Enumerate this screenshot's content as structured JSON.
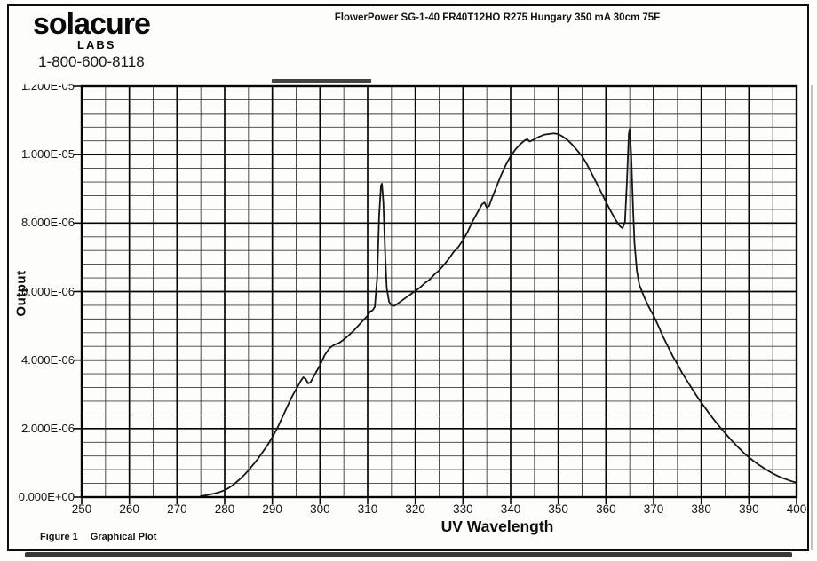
{
  "page": {
    "logo": {
      "brand": "solacure",
      "sub": "LABS",
      "phone": "1-800-600-8118"
    },
    "figure_caption": {
      "label": "Figure 1",
      "text": "Graphical Plot"
    },
    "colors": {
      "ink": "#141414",
      "paper": "#fdfdfc"
    }
  },
  "chart_data": {
    "type": "line",
    "title": "FlowerPower SG-1-40 FR40T12HO R275 Hungary 350 mA 30cm 75F",
    "xlabel": "UV Wavelength",
    "ylabel": "Output",
    "xlim": [
      250,
      400
    ],
    "ylim": [
      0,
      1.2e-05
    ],
    "x_ticks": [
      250,
      260,
      270,
      280,
      290,
      300,
      310,
      320,
      330,
      340,
      350,
      360,
      370,
      380,
      390,
      400
    ],
    "x_minor_step": 5,
    "y_tick_labels": [
      "0.000E+00",
      "2.000E-06",
      "4.000E-06",
      "6.000E-06",
      "8.000E-06",
      "1.000E-05",
      "1.200E-05"
    ],
    "y_tick_step": 2e-06,
    "y_minor_step": 4e-07,
    "grid": "both-with-minor",
    "legend": "none",
    "line_color": "#161616",
    "series": [
      {
        "name": "lamp-output-spectrum",
        "points": [
          [
            275,
            3e-08
          ],
          [
            276,
            5e-08
          ],
          [
            277,
            8e-08
          ],
          [
            278,
            1.1e-07
          ],
          [
            279,
            1.5e-07
          ],
          [
            280,
            2e-07
          ],
          [
            281,
            2.8e-07
          ],
          [
            282,
            3.8e-07
          ],
          [
            283,
            5e-07
          ],
          [
            284,
            6.3e-07
          ],
          [
            285,
            7.8e-07
          ],
          [
            286,
            9.5e-07
          ],
          [
            287,
            1.12e-06
          ],
          [
            288,
            1.32e-06
          ],
          [
            289,
            1.52e-06
          ],
          [
            290,
            1.75e-06
          ],
          [
            291,
            2e-06
          ],
          [
            292,
            2.3e-06
          ],
          [
            293,
            2.6e-06
          ],
          [
            294,
            2.9e-06
          ],
          [
            295,
            3.15e-06
          ],
          [
            296,
            3.4e-06
          ],
          [
            296.5,
            3.5e-06
          ],
          [
            297,
            3.45e-06
          ],
          [
            297.5,
            3.32e-06
          ],
          [
            298,
            3.35e-06
          ],
          [
            299,
            3.6e-06
          ],
          [
            300,
            3.85e-06
          ],
          [
            301,
            4.15e-06
          ],
          [
            302,
            4.35e-06
          ],
          [
            303,
            4.45e-06
          ],
          [
            304,
            4.5e-06
          ],
          [
            305,
            4.6e-06
          ],
          [
            306,
            4.72e-06
          ],
          [
            307,
            4.85e-06
          ],
          [
            308,
            5e-06
          ],
          [
            309,
            5.15e-06
          ],
          [
            310,
            5.3e-06
          ],
          [
            310.5,
            5.42e-06
          ],
          [
            311,
            5.45e-06
          ],
          [
            311.5,
            5.55e-06
          ],
          [
            312,
            6.4e-06
          ],
          [
            312.4,
            8.2e-06
          ],
          [
            312.8,
            9.1e-06
          ],
          [
            313,
            9.15e-06
          ],
          [
            313.3,
            8.6e-06
          ],
          [
            313.7,
            7e-06
          ],
          [
            314,
            6.1e-06
          ],
          [
            314.5,
            5.7e-06
          ],
          [
            315,
            5.6e-06
          ],
          [
            315.5,
            5.58e-06
          ],
          [
            316,
            5.62e-06
          ],
          [
            317,
            5.72e-06
          ],
          [
            318,
            5.82e-06
          ],
          [
            319,
            5.92e-06
          ],
          [
            320,
            6.02e-06
          ],
          [
            321,
            6.12e-06
          ],
          [
            322,
            6.25e-06
          ],
          [
            323,
            6.35e-06
          ],
          [
            324,
            6.5e-06
          ],
          [
            325,
            6.62e-06
          ],
          [
            326,
            6.78e-06
          ],
          [
            327,
            6.95e-06
          ],
          [
            328,
            7.15e-06
          ],
          [
            329,
            7.3e-06
          ],
          [
            330,
            7.5e-06
          ],
          [
            331,
            7.75e-06
          ],
          [
            332,
            8.05e-06
          ],
          [
            333,
            8.3e-06
          ],
          [
            334,
            8.55e-06
          ],
          [
            334.5,
            8.6e-06
          ],
          [
            335,
            8.45e-06
          ],
          [
            335.5,
            8.5e-06
          ],
          [
            336,
            8.7e-06
          ],
          [
            337,
            9.05e-06
          ],
          [
            338,
            9.4e-06
          ],
          [
            339,
            9.7e-06
          ],
          [
            340,
            9.95e-06
          ],
          [
            341,
            1.015e-05
          ],
          [
            342,
            1.03e-05
          ],
          [
            343,
            1.042e-05
          ],
          [
            343.5,
            1.045e-05
          ],
          [
            344,
            1.038e-05
          ],
          [
            345,
            1.045e-05
          ],
          [
            346,
            1.052e-05
          ],
          [
            347,
            1.058e-05
          ],
          [
            348,
            1.06e-05
          ],
          [
            349,
            1.062e-05
          ],
          [
            350,
            1.06e-05
          ],
          [
            351,
            1.052e-05
          ],
          [
            352,
            1.042e-05
          ],
          [
            353,
            1.028e-05
          ],
          [
            354,
            1.012e-05
          ],
          [
            355,
            9.95e-06
          ],
          [
            356,
            9.72e-06
          ],
          [
            357,
            9.45e-06
          ],
          [
            358,
            9.18e-06
          ],
          [
            359,
            8.9e-06
          ],
          [
            360,
            8.62e-06
          ],
          [
            361,
            8.35e-06
          ],
          [
            362,
            8.1e-06
          ],
          [
            363,
            7.9e-06
          ],
          [
            363.5,
            7.85e-06
          ],
          [
            364,
            8.05e-06
          ],
          [
            364.4,
            9.2e-06
          ],
          [
            364.8,
            1.06e-05
          ],
          [
            365,
            1.075e-05
          ],
          [
            365.3,
            1e-05
          ],
          [
            365.7,
            8.4e-06
          ],
          [
            366,
            7.4e-06
          ],
          [
            366.5,
            6.6e-06
          ],
          [
            367,
            6.2e-06
          ],
          [
            368,
            5.85e-06
          ],
          [
            369,
            5.55e-06
          ],
          [
            370,
            5.3e-06
          ],
          [
            371,
            5e-06
          ],
          [
            372,
            4.68e-06
          ],
          [
            373,
            4.4e-06
          ],
          [
            374,
            4.12e-06
          ],
          [
            375,
            3.88e-06
          ],
          [
            376,
            3.62e-06
          ],
          [
            377,
            3.4e-06
          ],
          [
            378,
            3.18e-06
          ],
          [
            379,
            2.96e-06
          ],
          [
            380,
            2.76e-06
          ],
          [
            381,
            2.57e-06
          ],
          [
            382,
            2.38e-06
          ],
          [
            383,
            2.2e-06
          ],
          [
            384,
            2.03e-06
          ],
          [
            385,
            1.87e-06
          ],
          [
            386,
            1.71e-06
          ],
          [
            387,
            1.56e-06
          ],
          [
            388,
            1.42e-06
          ],
          [
            389,
            1.28e-06
          ],
          [
            390,
            1.16e-06
          ],
          [
            391,
            1.05e-06
          ],
          [
            392,
            9.5e-07
          ],
          [
            393,
            8.6e-07
          ],
          [
            394,
            7.7e-07
          ],
          [
            395,
            6.9e-07
          ],
          [
            396,
            6.2e-07
          ],
          [
            397,
            5.6e-07
          ],
          [
            398,
            5.1e-07
          ],
          [
            399,
            4.6e-07
          ],
          [
            400,
            4.2e-07
          ]
        ]
      }
    ]
  }
}
